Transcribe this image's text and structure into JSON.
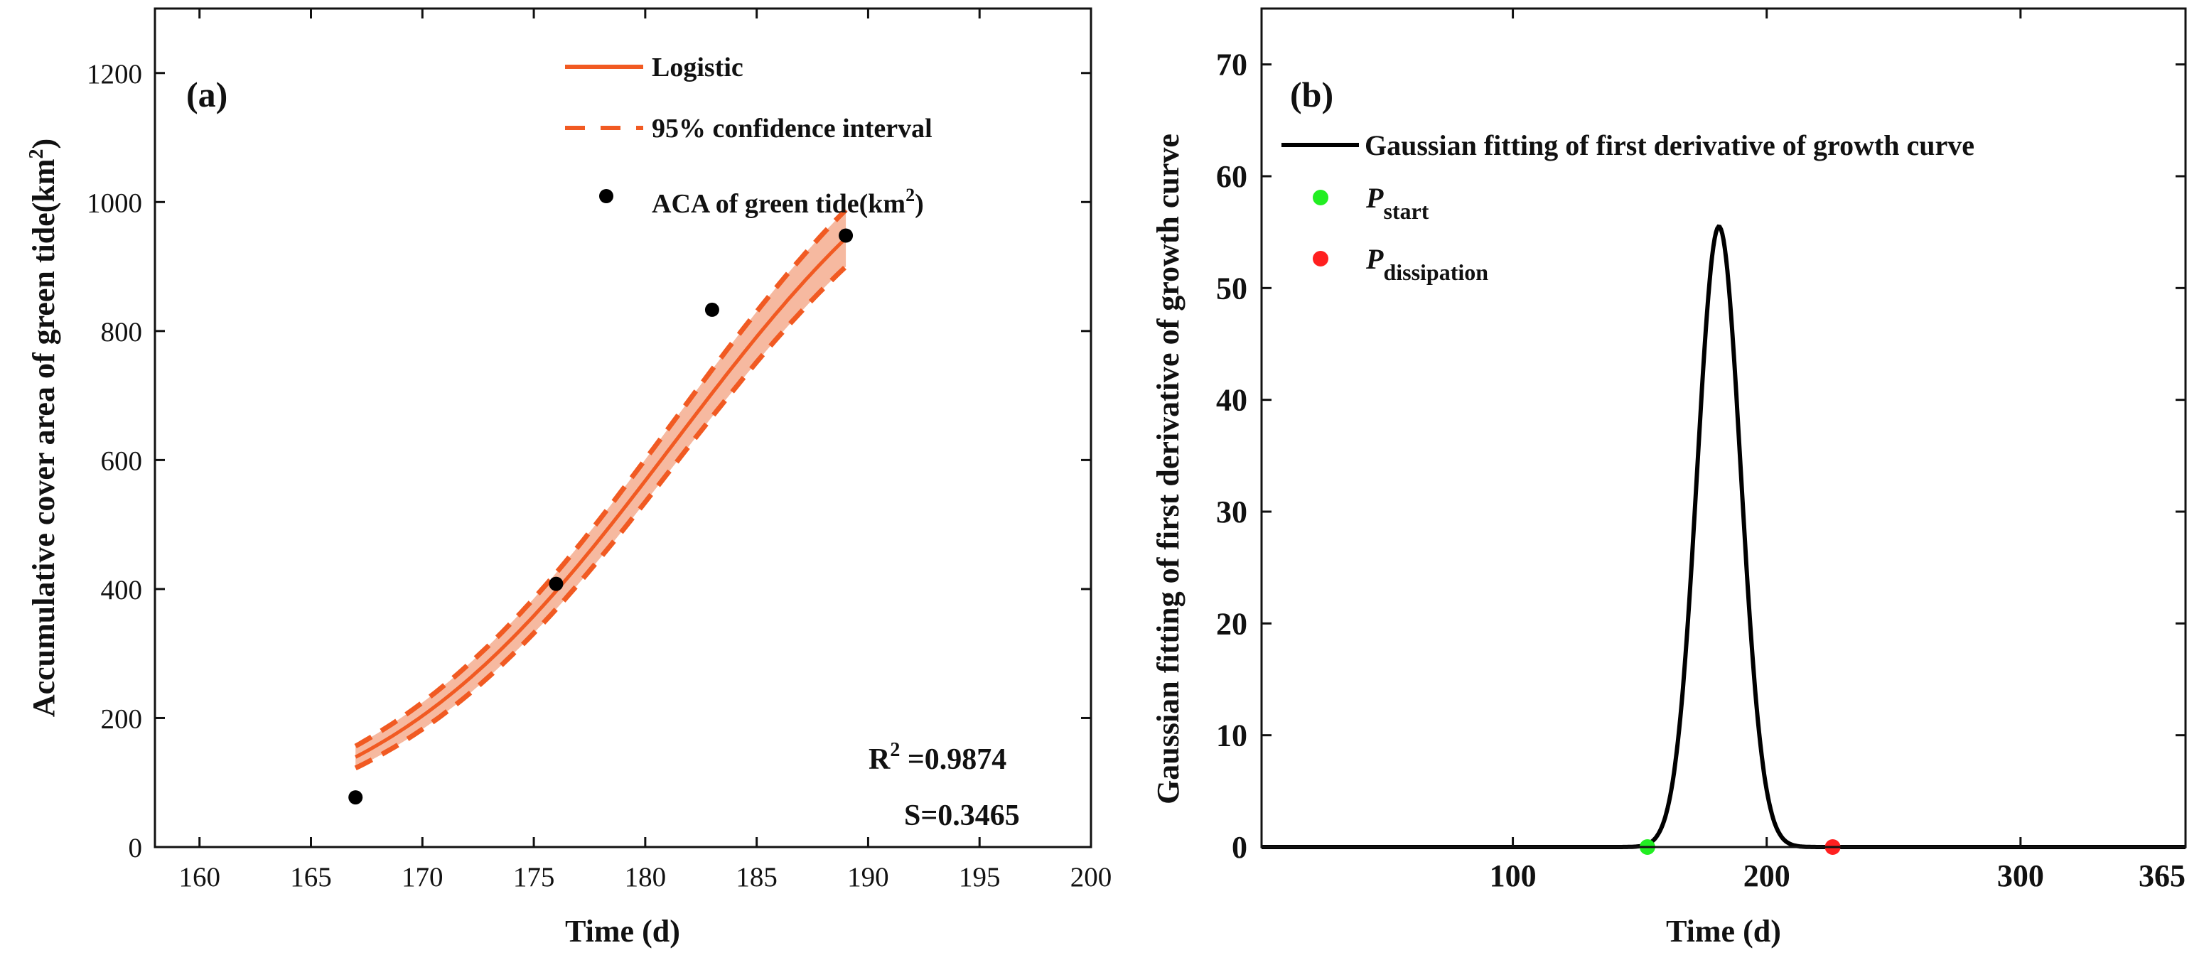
{
  "chart_data": [
    {
      "panel": "(a)",
      "type": "line",
      "xlabel": "Time (d)",
      "ylabel_main": "Accumulative cover area of green tide(km",
      "ylabel_sup": "2",
      "ylabel_tail": ")",
      "xlim": [
        158,
        200
      ],
      "ylim": [
        0,
        1300
      ],
      "xticks": [
        160,
        165,
        170,
        175,
        180,
        185,
        190,
        195,
        200
      ],
      "yticks": [
        0,
        200,
        400,
        600,
        800,
        1000,
        1200
      ],
      "legend": {
        "logistic": "Logistic",
        "ci": "95% confidence interval",
        "points_main": "ACA of green tide(km",
        "points_sup": "2",
        "points_tail": ")"
      },
      "logistic_fit": {
        "K": 1250,
        "r": 0.1455,
        "t0": 181.26,
        "x_range": [
          167,
          189
        ]
      },
      "ci_halfwidth": [
        17,
        44
      ],
      "points": {
        "x": [
          167,
          176,
          183,
          189
        ],
        "y": [
          77,
          408,
          833,
          948
        ]
      },
      "stats": {
        "r2_label": "R",
        "r2_sup": "2",
        "r2_value": " =0.9874",
        "s_text": "S=0.3465"
      },
      "colors": {
        "line": "#f15a22",
        "band": "#f6b9a0",
        "points": "#000000"
      }
    },
    {
      "panel": "(b)",
      "type": "line",
      "xlabel": "Time (d)",
      "ylabel": "Gaussian fitting of first derivative of growth curve",
      "xlim": [
        1,
        365
      ],
      "ylim": [
        0,
        75
      ],
      "xticks": [
        100,
        200,
        300,
        365
      ],
      "yticks": [
        0,
        10,
        20,
        30,
        40,
        50,
        60,
        70
      ],
      "gaussian": {
        "amplitude": 55.5,
        "mu": 181.2,
        "sigma": 8.6
      },
      "legend": {
        "curve": "Gaussian fitting of first derivative of growth curve",
        "start_main": "P",
        "start_sub": "start",
        "dissipation_main": "P",
        "dissipation_sub": "dissipation"
      },
      "points": {
        "start": {
          "x": 153,
          "y": 0
        },
        "dissipation": {
          "x": 226,
          "y": 0
        }
      },
      "colors": {
        "curve": "#000000",
        "start": "#22ee22",
        "dissipation": "#ff2020"
      }
    }
  ]
}
